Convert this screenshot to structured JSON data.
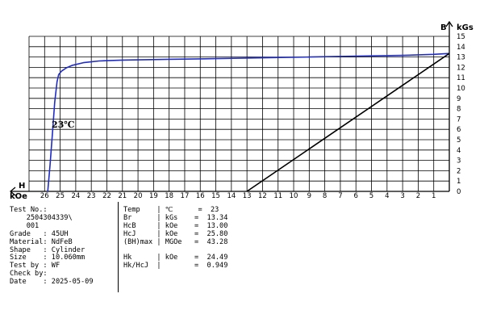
{
  "chart_data": {
    "type": "line",
    "xlabel": "kOe",
    "x_axis_symbol": "H",
    "ylabel": "kGs",
    "y_axis_symbol": "B",
    "xlim": [
      0,
      27
    ],
    "ylim": [
      0,
      15
    ],
    "x_reversed": true,
    "grid": true,
    "x_ticks": [
      26,
      25,
      24,
      23,
      22,
      21,
      20,
      19,
      18,
      17,
      16,
      15,
      14,
      13,
      12,
      11,
      10,
      9,
      8,
      7,
      6,
      5,
      4,
      3,
      2,
      1
    ],
    "y_ticks": [
      0,
      1,
      2,
      3,
      4,
      5,
      6,
      7,
      8,
      9,
      10,
      11,
      12,
      13,
      14,
      15
    ],
    "annotation": "23℃",
    "series": [
      {
        "color": "#1f2cc8",
        "points": [
          [
            25.8,
            0
          ],
          [
            25.65,
            2.6
          ],
          [
            25.5,
            5.5
          ],
          [
            25.35,
            8.6
          ],
          [
            25.2,
            10.6
          ],
          [
            25.1,
            11.3
          ],
          [
            24.9,
            11.65
          ],
          [
            24.6,
            11.95
          ],
          [
            24.2,
            12.2
          ],
          [
            23.5,
            12.45
          ],
          [
            22.5,
            12.62
          ],
          [
            21,
            12.7
          ],
          [
            18,
            12.78
          ],
          [
            15,
            12.84
          ],
          [
            12,
            12.92
          ],
          [
            9,
            13.0
          ],
          [
            6,
            13.08
          ],
          [
            3,
            13.16
          ],
          [
            1,
            13.26
          ],
          [
            0,
            13.34
          ]
        ]
      },
      {
        "color": "#000000",
        "points": [
          [
            13.0,
            0
          ],
          [
            0,
            13.34
          ]
        ]
      }
    ]
  },
  "info": {
    "left": [
      {
        "label": "Test No.",
        "sep": ":",
        "value": ""
      },
      {
        "label": "",
        "sep": "",
        "value": "2504304339\\"
      },
      {
        "label": "",
        "sep": "",
        "value": "001"
      },
      {
        "label": "Grade",
        "sep": ":",
        "value": "45UH"
      },
      {
        "label": "Material",
        "sep": ":",
        "value": "NdFeB"
      },
      {
        "label": "Shape",
        "sep": ":",
        "value": "Cylinder"
      },
      {
        "label": "Size",
        "sep": ":",
        "value": "10.060mm"
      },
      {
        "label": "Test by",
        "sep": ":",
        "value": "WF"
      },
      {
        "label": "Check by",
        "sep": ":",
        "value": ""
      },
      {
        "label": "Date",
        "sep": ":",
        "value": "2025-05-09"
      }
    ],
    "right": [
      {
        "name": "Temp",
        "unit": "℃",
        "value": "23"
      },
      {
        "name": "Br",
        "unit": "kGs",
        "value": "13.34"
      },
      {
        "name": "HcB",
        "unit": "kOe",
        "value": "13.00"
      },
      {
        "name": "HcJ",
        "unit": "kOe",
        "value": "25.80"
      },
      {
        "name": "(BH)max",
        "unit": "MGOe",
        "value": "43.28"
      },
      {
        "name": "",
        "unit": "",
        "value": ""
      },
      {
        "name": "Hk",
        "unit": "kOe",
        "value": "24.49"
      },
      {
        "name": "Hk/HcJ",
        "unit": "",
        "value": "0.949"
      }
    ]
  }
}
